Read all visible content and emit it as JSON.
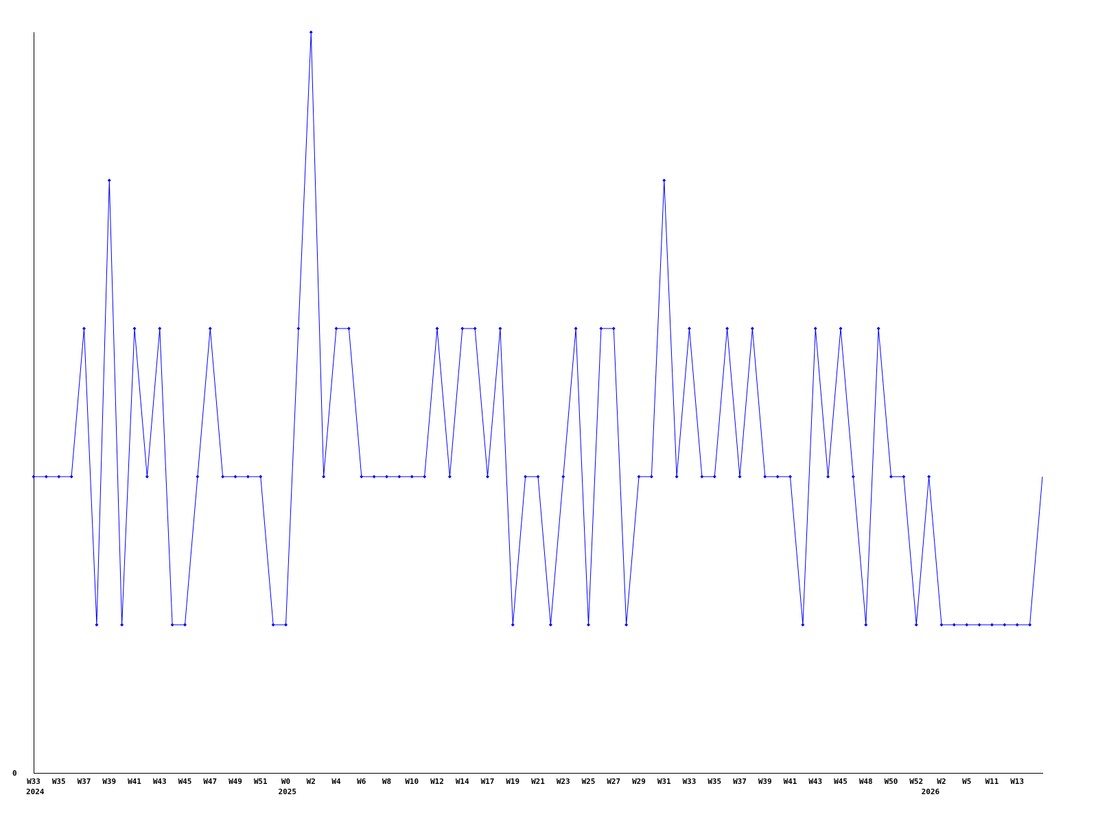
{
  "chart_data": {
    "type": "line",
    "title": "",
    "xlabel": "",
    "ylabel": "",
    "y_tick_labels": [
      "0"
    ],
    "ylim": [
      0,
      5
    ],
    "grid": false,
    "line_color": "#0000ff",
    "x_tick_labels": [
      "W33",
      "W35",
      "W37",
      "W39",
      "W41",
      "W43",
      "W45",
      "W47",
      "W49",
      "W51",
      "W0",
      "W2",
      "W4",
      "W6",
      "W8",
      "W10",
      "W12",
      "W14",
      "W17",
      "W19",
      "W21",
      "W23",
      "W25",
      "W27",
      "W29",
      "W31",
      "W33",
      "W35",
      "W37",
      "W39",
      "W41",
      "W43",
      "W45",
      "W48",
      "W50",
      "W52",
      "W2",
      "W5",
      "W11",
      "W13"
    ],
    "year_labels": [
      {
        "label": "2024",
        "point_index": 0
      },
      {
        "label": "2025",
        "point_index": 20
      },
      {
        "label": "2026",
        "point_index": 71
      }
    ],
    "values": [
      2,
      2,
      2,
      2,
      3,
      1,
      4,
      1,
      3,
      2,
      3,
      1,
      1,
      2,
      3,
      2,
      2,
      2,
      2,
      1,
      1,
      3,
      5,
      2,
      3,
      3,
      2,
      2,
      2,
      2,
      2,
      2,
      3,
      2,
      3,
      3,
      2,
      3,
      1,
      2,
      2,
      1,
      2,
      3,
      1,
      3,
      3,
      1,
      2,
      2,
      4,
      2,
      3,
      2,
      2,
      3,
      2,
      3,
      2,
      2,
      2,
      1,
      3,
      2,
      3,
      2,
      1,
      3,
      2,
      2,
      1,
      2,
      1,
      1,
      1,
      1,
      1,
      1,
      1,
      1,
      2
    ]
  }
}
